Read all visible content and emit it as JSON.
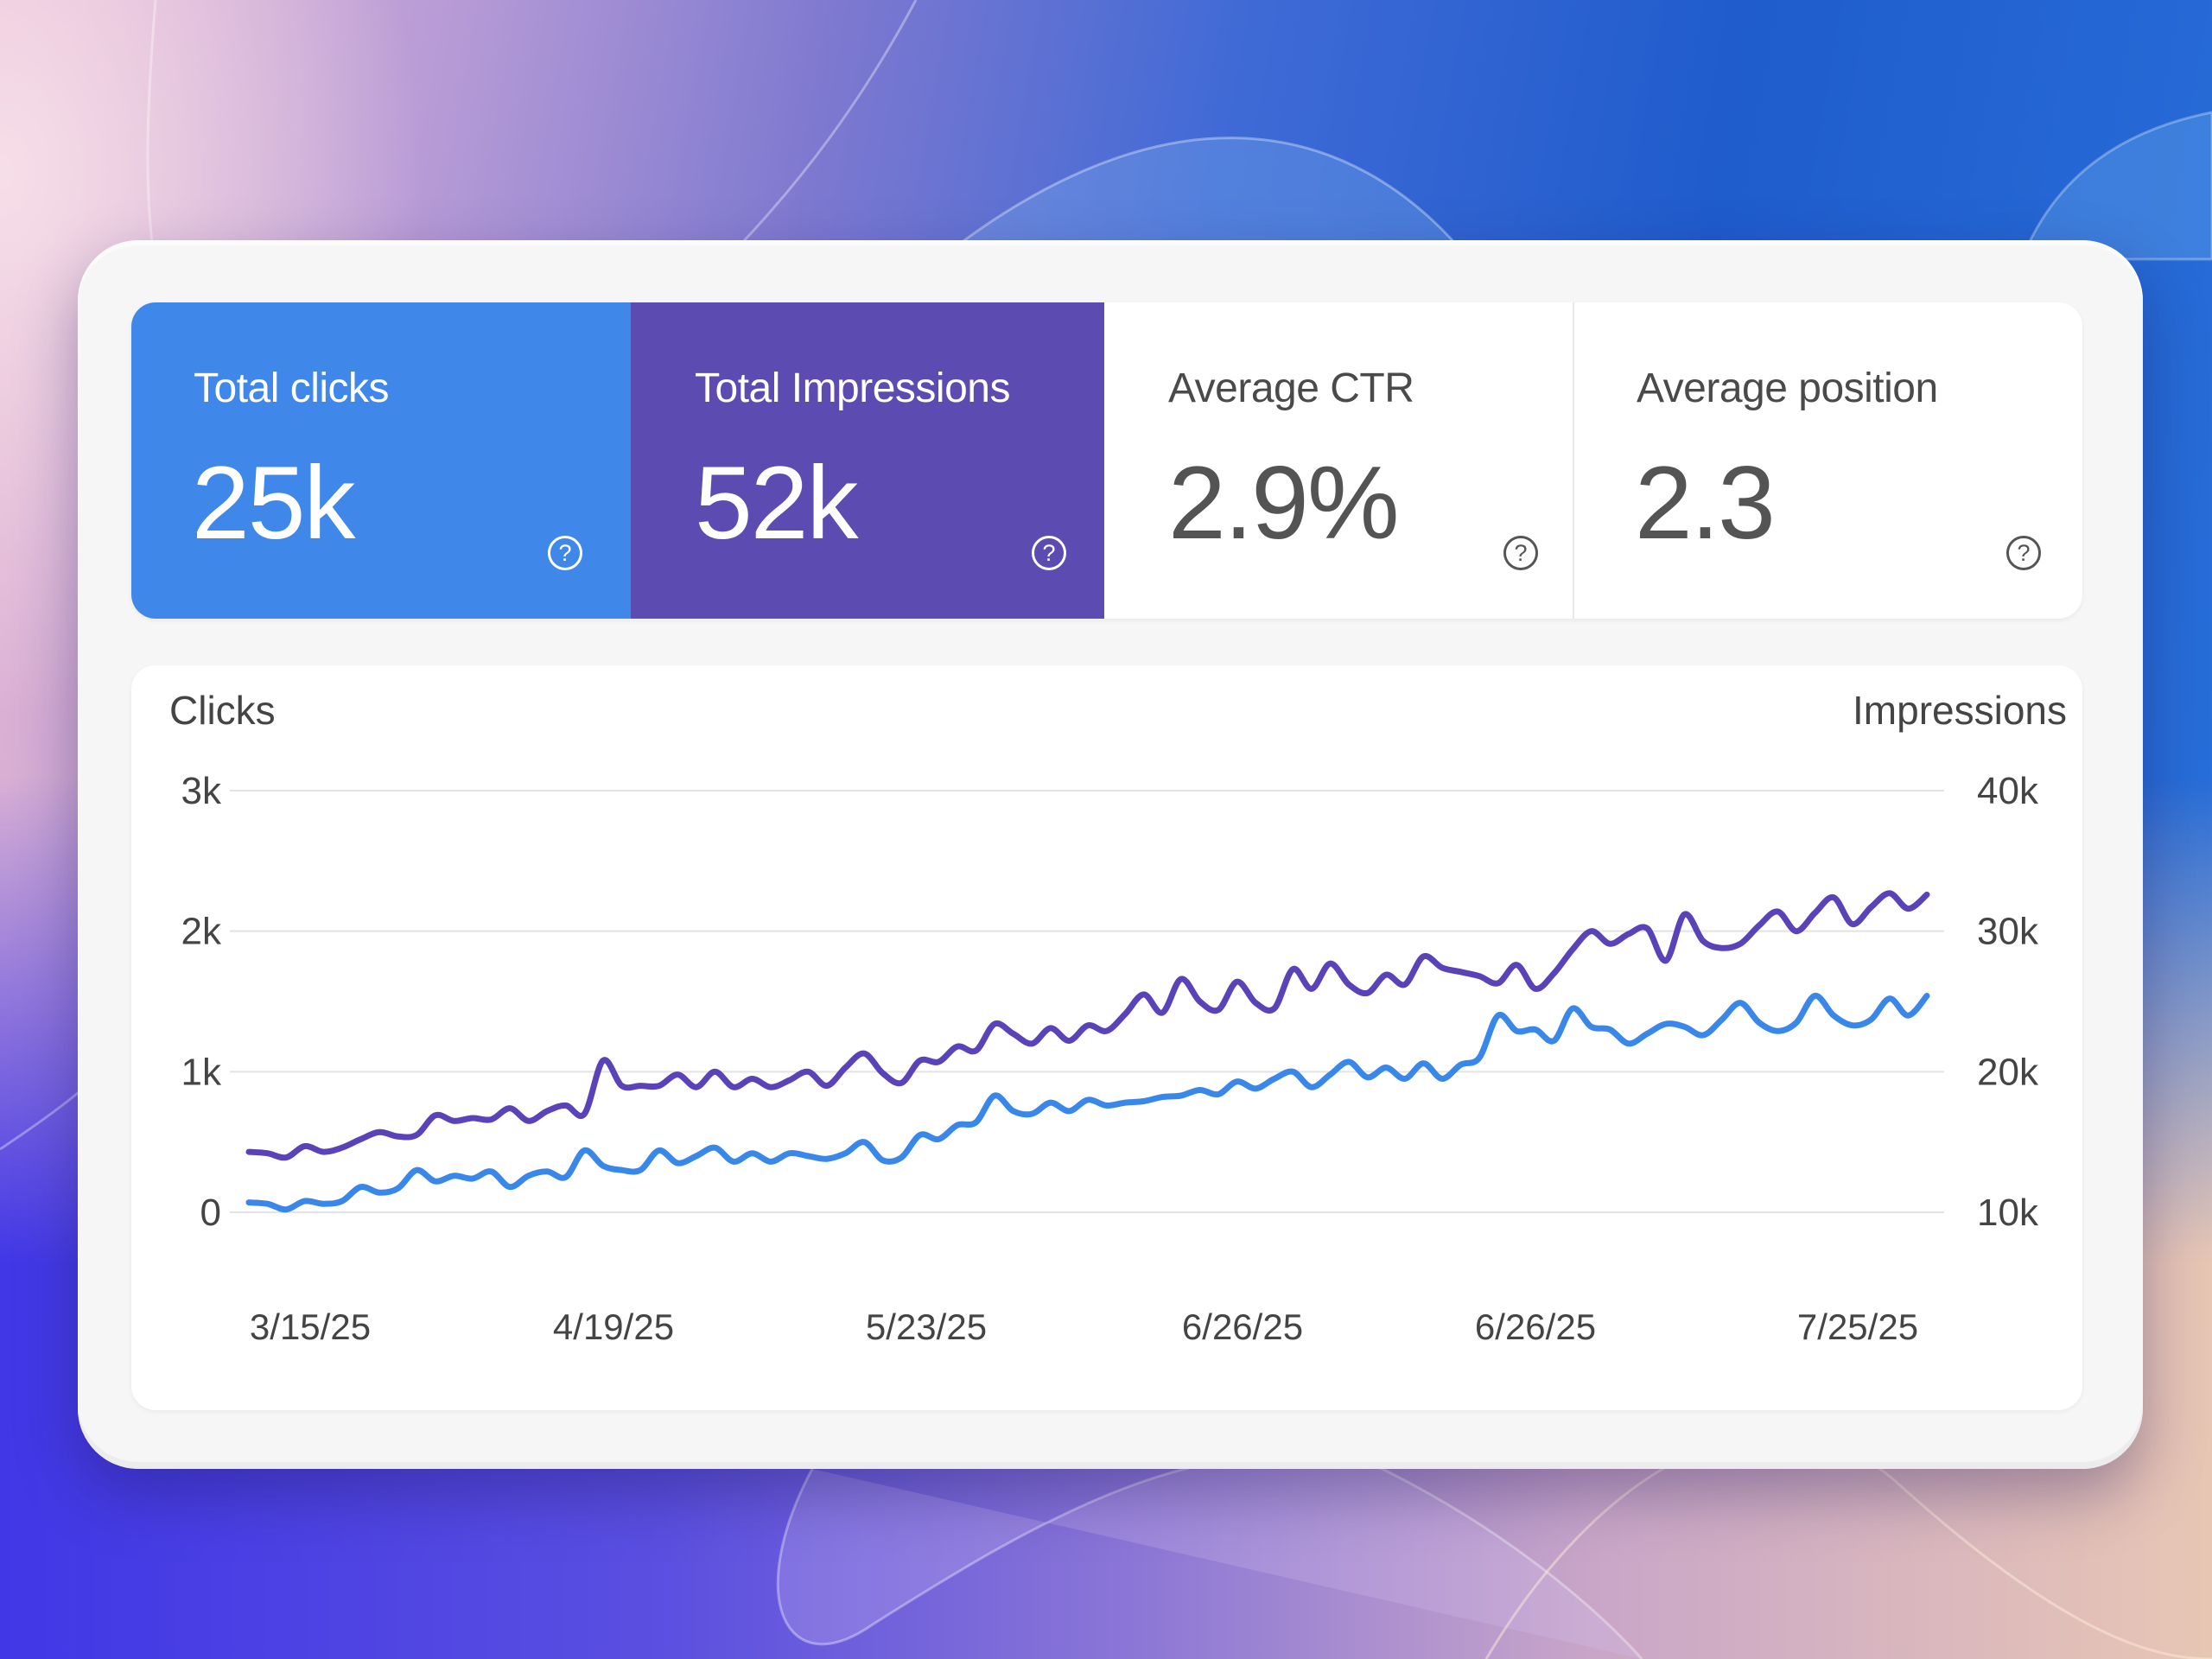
{
  "metrics": [
    {
      "label": "Total clicks",
      "value": "25k",
      "help_icon": "question-circle-icon",
      "color": "#3f87e9"
    },
    {
      "label": "Total Impressions",
      "value": "52k",
      "help_icon": "question-circle-icon",
      "color": "#5c4bb0"
    },
    {
      "label": "Average CTR",
      "value": "2.9%",
      "help_icon": "question-circle-icon",
      "color": "#ffffff"
    },
    {
      "label": "Average position",
      "value": "2.3",
      "help_icon": "question-circle-icon",
      "color": "#ffffff"
    }
  ],
  "help_glyph": "?",
  "chart_data": {
    "type": "line",
    "title": "",
    "ylabel": "Clicks",
    "ylabel_right": "Impressions",
    "xlabel": "",
    "ylim": [
      0,
      3000
    ],
    "ylim_right": [
      10000,
      40000
    ],
    "yticks": [
      "0",
      "1k",
      "2k",
      "3k"
    ],
    "yticks_right": [
      "10k",
      "20k",
      "30k",
      "40k"
    ],
    "xtick_labels": [
      "3/15/25",
      "4/19/25",
      "5/23/25",
      "6/26/25",
      "6/26/25",
      "7/25/25"
    ],
    "grid": true,
    "legend": "none",
    "series": [
      {
        "name": "Impressions",
        "axis": "right",
        "color": "#5a43b8",
        "values": [
          14300,
          14200,
          13900,
          14700,
          14300,
          14600,
          15200,
          15700,
          15400,
          15500,
          16900,
          16500,
          16700,
          16600,
          17400,
          16500,
          17200,
          17600,
          17000,
          20800,
          19000,
          19000,
          19000,
          19800,
          18900,
          20000,
          18900,
          19500,
          18900,
          19400,
          20000,
          19000,
          20300,
          21300,
          19900,
          19200,
          20800,
          20700,
          21800,
          21500,
          23400,
          22700,
          22000,
          23100,
          22200,
          23300,
          22900,
          24100,
          25500,
          24200,
          26600,
          25000,
          24400,
          26400,
          24900,
          24500,
          27300,
          25900,
          27700,
          26200,
          25600,
          26900,
          26200,
          28200,
          27400,
          27100,
          26800,
          26300,
          27600,
          25900,
          27000,
          28700,
          30000,
          29100,
          29800,
          30200,
          27900,
          31200,
          29300,
          28800,
          29100,
          30400,
          31400,
          30000,
          31300,
          32400,
          30500,
          31700,
          32700,
          31600,
          32600
        ]
      },
      {
        "name": "Clicks",
        "axis": "left",
        "color": "#3a87ea",
        "values": [
          70,
          60,
          20,
          80,
          60,
          80,
          180,
          140,
          170,
          300,
          220,
          260,
          240,
          290,
          180,
          260,
          290,
          250,
          440,
          330,
          300,
          300,
          440,
          350,
          400,
          460,
          360,
          420,
          360,
          420,
          400,
          380,
          420,
          500,
          370,
          390,
          550,
          520,
          620,
          640,
          830,
          720,
          700,
          780,
          720,
          800,
          760,
          780,
          790,
          820,
          830,
          870,
          840,
          930,
          880,
          950,
          1000,
          890,
          980,
          1070,
          960,
          1030,
          950,
          1060,
          950,
          1050,
          1100,
          1400,
          1290,
          1300,
          1220,
          1450,
          1320,
          1300,
          1200,
          1270,
          1340,
          1320,
          1260,
          1370,
          1490,
          1350,
          1290,
          1350,
          1540,
          1400,
          1330,
          1370,
          1520,
          1400,
          1540
        ]
      }
    ]
  }
}
